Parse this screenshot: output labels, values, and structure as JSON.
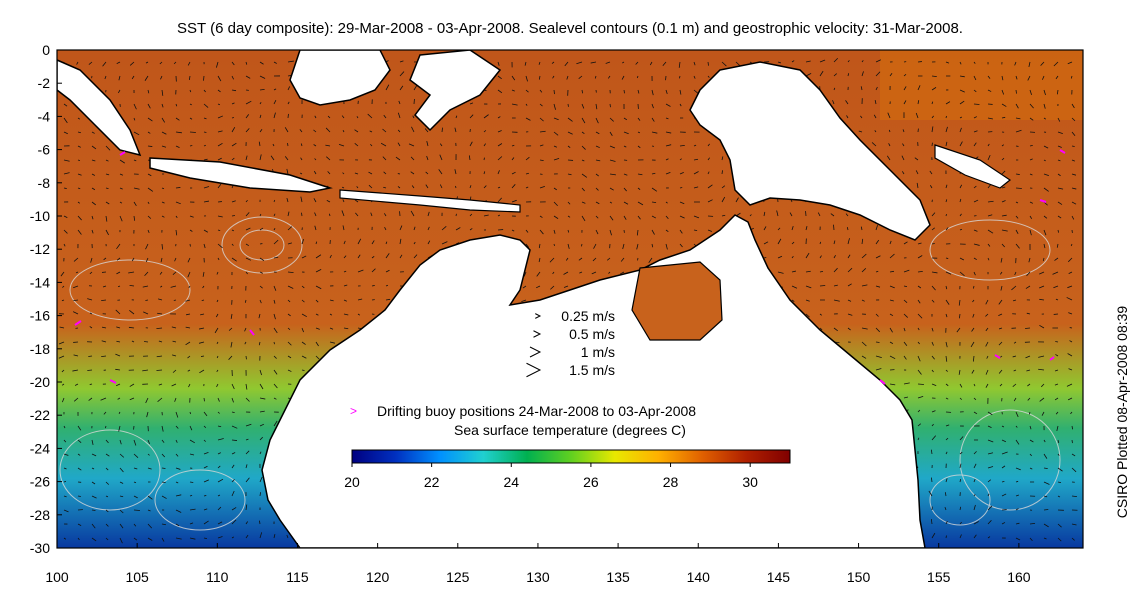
{
  "title": "SST (6 day composite): 29-Mar-2008 - 03-Apr-2008. Sealevel contours (0.1 m) and geostrophic velocity: 31-Mar-2008.",
  "credit": "CSIRO Plotted 08-Apr-2008 08:39",
  "map": {
    "lon_range": [
      100,
      164
    ],
    "lat_range": [
      -30,
      0
    ],
    "x_ticks": [
      "100",
      "105",
      "110",
      "115",
      "120",
      "125",
      "130",
      "135",
      "140",
      "145",
      "150",
      "155",
      "160"
    ],
    "y_ticks": [
      "0",
      "-2",
      "-4",
      "-6",
      "-8",
      "-10",
      "-12",
      "-14",
      "-16",
      "-18",
      "-20",
      "-22",
      "-24",
      "-26",
      "-28",
      "-30"
    ]
  },
  "velocity_legend": [
    {
      "label": "0.25 m/s",
      "speed": 0.25
    },
    {
      "label": "0.5 m/s",
      "speed": 0.5
    },
    {
      "label": "1 m/s",
      "speed": 1
    },
    {
      "label": "1.5 m/s",
      "speed": 1.5
    }
  ],
  "buoy_legend": {
    "label": "Drifting buoy positions 24-Mar-2008 to 03-Apr-2008",
    "color": "#ff00ff"
  },
  "colorbar": {
    "title": "Sea surface temperature (degrees C)",
    "range": [
      20,
      31
    ],
    "ticks": [
      "20",
      "22",
      "24",
      "26",
      "28",
      "30"
    ],
    "colors": [
      "#000080",
      "#0030c0",
      "#0090ff",
      "#20d0d0",
      "#00b050",
      "#60d020",
      "#e8e800",
      "#ffb000",
      "#e06000",
      "#b02000",
      "#800000"
    ]
  },
  "colors": {
    "land": "#ffffff",
    "coast": "#000000",
    "contour": "#d8d8d8",
    "warm_sea": "#c85a1a",
    "cool_sea": "#20b0c0"
  }
}
